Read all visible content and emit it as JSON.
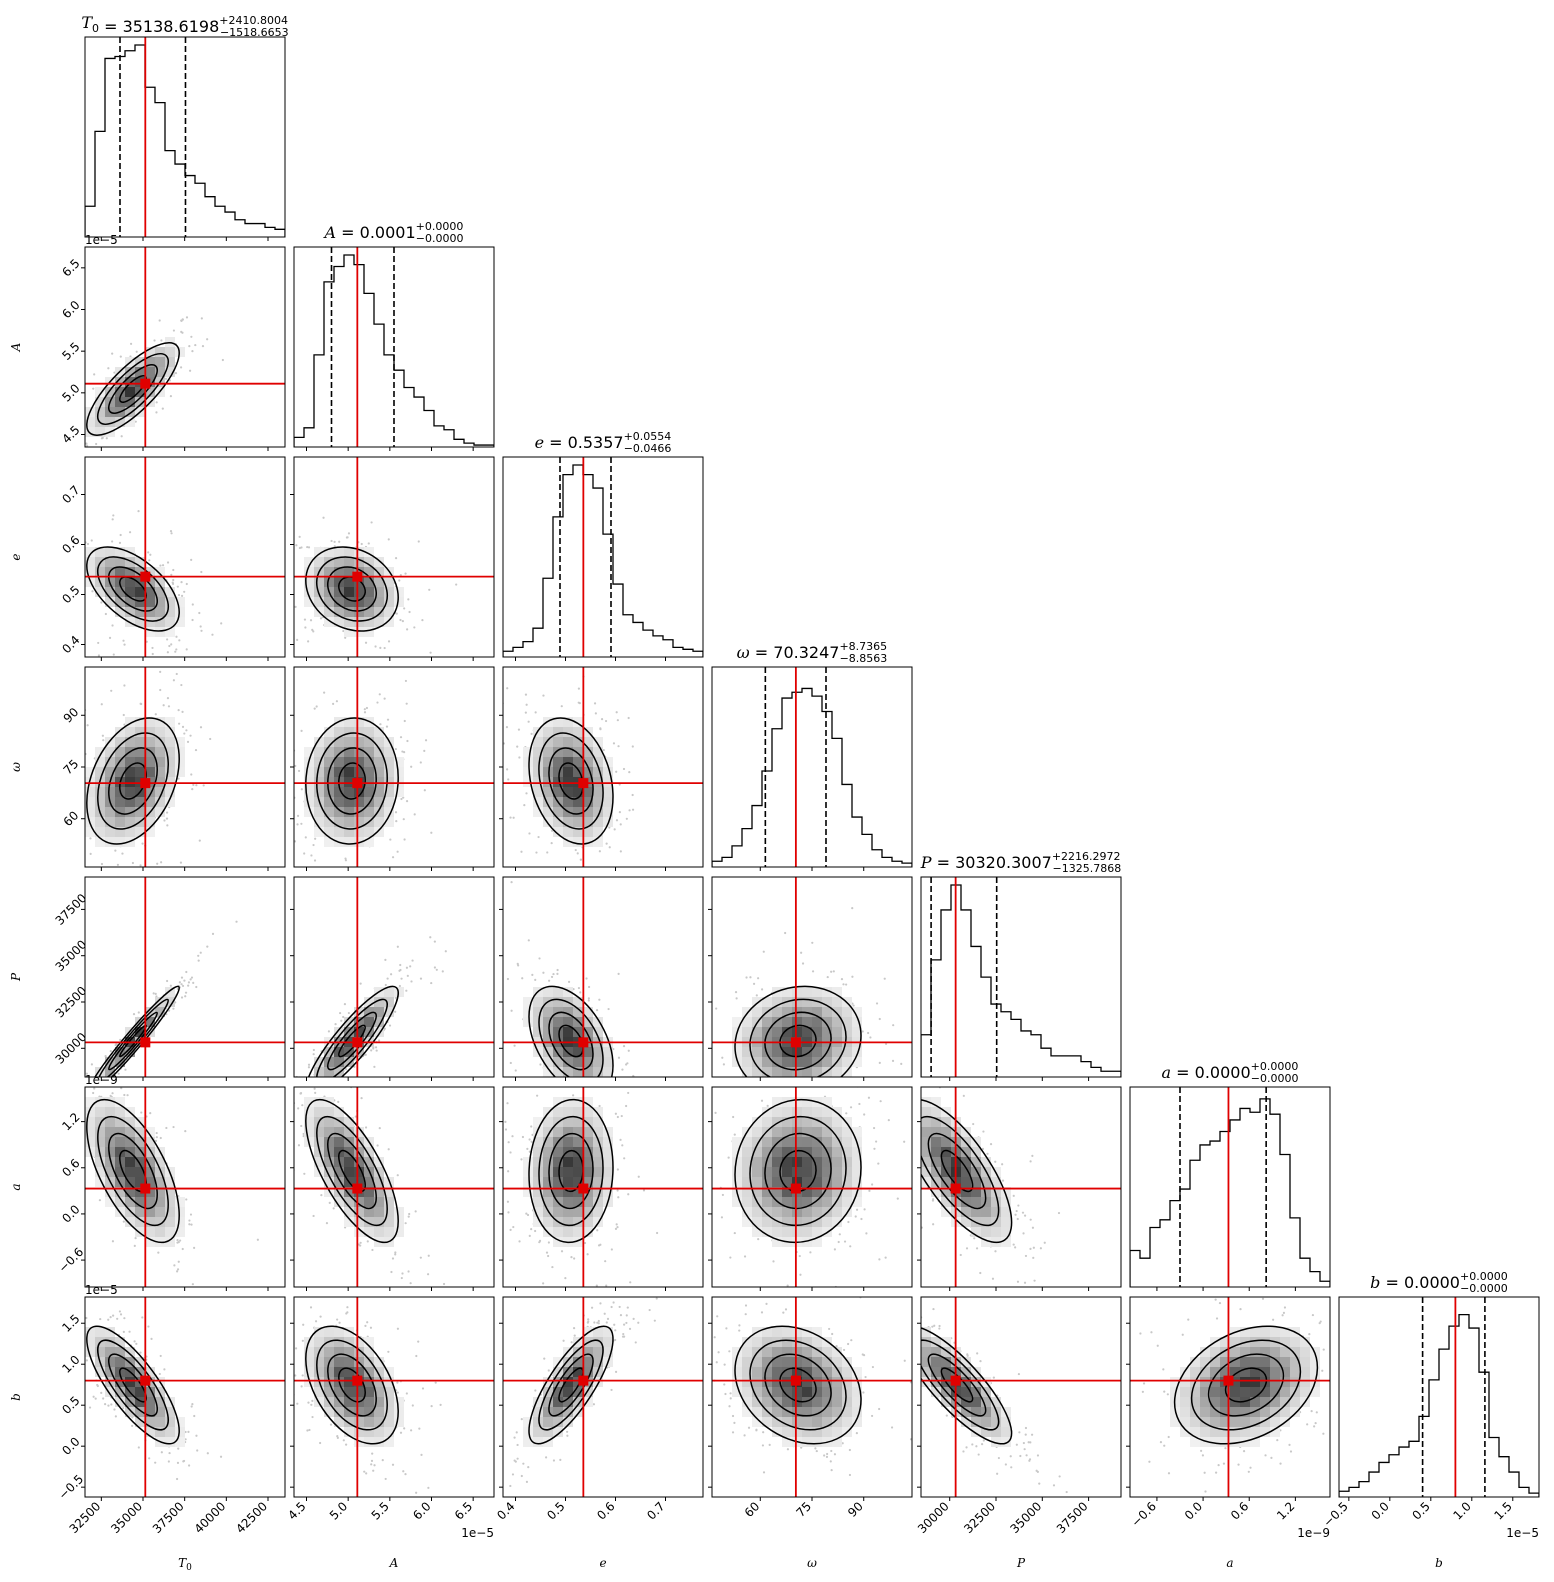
{
  "chart_data": {
    "type": "corner",
    "parameters": [
      {
        "key": "T0",
        "xlabel": "T",
        "sub": "0",
        "title": {
          "symbol": "T",
          "sub": "0",
          "value": "35138.6198",
          "plus": "+2410.8004",
          "minus": "−1518.6653"
        },
        "median": 35138.6198,
        "q_low": 33620,
        "q_high": 37549,
        "ticks": [
          "32500",
          "35000",
          "37500",
          "40000",
          "42500"
        ],
        "offset_text": "",
        "hist": [
          0.16,
          0.55,
          0.93,
          0.94,
          0.97,
          1.0,
          0.78,
          0.7,
          0.45,
          0.38,
          0.32,
          0.28,
          0.21,
          0.16,
          0.13,
          0.09,
          0.07,
          0.07,
          0.05,
          0.04
        ]
      },
      {
        "key": "A",
        "xlabel": "A",
        "sub": "",
        "title": {
          "symbol": "A",
          "sub": "",
          "value": "0.0001",
          "plus": "+0.0000",
          "minus": "−0.0000"
        },
        "median": 5.11,
        "q_low": 4.8,
        "q_high": 5.55,
        "ticks": [
          "4.5",
          "5.0",
          "5.5",
          "6.0",
          "6.5"
        ],
        "offset_text": "1e−5",
        "hist": [
          0.05,
          0.1,
          0.48,
          0.86,
          0.94,
          1.0,
          0.95,
          0.8,
          0.64,
          0.48,
          0.4,
          0.31,
          0.26,
          0.19,
          0.11,
          0.09,
          0.04,
          0.02,
          0.01,
          0.01
        ]
      },
      {
        "key": "e",
        "xlabel": "e",
        "sub": "",
        "title": {
          "symbol": "e",
          "sub": "",
          "value": "0.5357",
          "plus": "+0.0554",
          "minus": "−0.0466"
        },
        "median": 0.5357,
        "q_low": 0.489,
        "q_high": 0.591,
        "ticks": [
          "0.4",
          "0.5",
          "0.6",
          "0.7"
        ],
        "offset_text": "",
        "hist": [
          0.03,
          0.05,
          0.08,
          0.15,
          0.41,
          0.73,
          0.95,
          1.0,
          0.95,
          0.88,
          0.64,
          0.38,
          0.22,
          0.18,
          0.14,
          0.11,
          0.09,
          0.05,
          0.04,
          0.03
        ]
      },
      {
        "key": "omega",
        "xlabel": "ω",
        "sub": "",
        "title": {
          "symbol": "ω",
          "sub": "",
          "value": "70.3247",
          "plus": "+8.7365",
          "minus": "−8.8563"
        },
        "median": 70.3247,
        "q_low": 61.47,
        "q_high": 79.06,
        "ticks": [
          "60",
          "75",
          "90"
        ],
        "offset_text": "",
        "hist": [
          0.03,
          0.05,
          0.11,
          0.2,
          0.32,
          0.5,
          0.72,
          0.88,
          0.91,
          0.93,
          0.89,
          0.81,
          0.67,
          0.43,
          0.26,
          0.17,
          0.09,
          0.05,
          0.03,
          0.02
        ]
      },
      {
        "key": "P",
        "xlabel": "P",
        "sub": "",
        "title": {
          "symbol": "P",
          "sub": "",
          "value": "30320.3007",
          "plus": "+2216.2972",
          "minus": "−1325.7868"
        },
        "median": 30320.3007,
        "q_low": 28995,
        "q_high": 32537,
        "ticks": [
          "30000",
          "32500",
          "35000",
          "37500"
        ],
        "offset_text": "",
        "hist": [
          0.22,
          0.61,
          0.87,
          1.0,
          0.87,
          0.68,
          0.52,
          0.38,
          0.34,
          0.3,
          0.24,
          0.22,
          0.15,
          0.11,
          0.11,
          0.11,
          0.08,
          0.05,
          0.03,
          0.03
        ]
      },
      {
        "key": "a",
        "xlabel": "a",
        "sub": "",
        "title": {
          "symbol": "a",
          "sub": "",
          "value": "0.0000",
          "plus": "+0.0000",
          "minus": "−0.0000"
        },
        "median": 0.33,
        "q_low": -0.3,
        "q_high": 0.82,
        "ticks": [
          "−0.6",
          "0.0",
          "0.6",
          "1.2"
        ],
        "offset_text": "1e−9",
        "hist": [
          0.19,
          0.15,
          0.31,
          0.35,
          0.45,
          0.51,
          0.66,
          0.74,
          0.76,
          0.81,
          0.87,
          0.93,
          0.91,
          0.98,
          0.9,
          0.69,
          0.36,
          0.15,
          0.08,
          0.03
        ]
      },
      {
        "key": "b",
        "xlabel": "b",
        "sub": "",
        "title": {
          "symbol": "b",
          "sub": "",
          "value": "0.0000",
          "plus": "+0.0000",
          "minus": "−0.0000"
        },
        "median": 0.8,
        "q_low": 0.4,
        "q_high": 1.16,
        "ticks": [
          "−0.5",
          "0.0",
          "0.5",
          "1.0",
          "1.5"
        ],
        "offset_text": "1e−5",
        "hist": [
          0.03,
          0.05,
          0.08,
          0.13,
          0.18,
          0.22,
          0.26,
          0.29,
          0.42,
          0.61,
          0.77,
          0.89,
          0.95,
          0.88,
          0.65,
          0.31,
          0.21,
          0.13,
          0.05,
          0.02
        ]
      }
    ],
    "truth_color": "#e00000",
    "quantile_style": "dashed",
    "contour_color": "#000000",
    "density_cmap": "greys"
  }
}
